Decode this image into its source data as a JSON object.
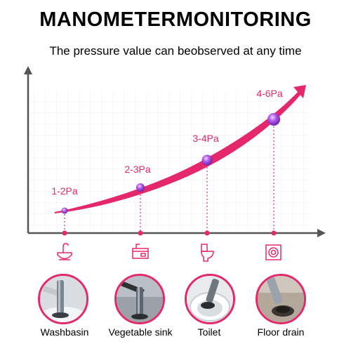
{
  "header": {
    "title": "MANOMETERMONITORING",
    "subtitle": "The pressure value can beobserved at any time"
  },
  "colors": {
    "accent": "#e5286b",
    "point": "#a64ce0",
    "axis": "#555555"
  },
  "points": [
    {
      "label": "1-2Pa"
    },
    {
      "label": "2-3Pa"
    },
    {
      "label": "3-4Pa"
    },
    {
      "label": "4-6Pa"
    }
  ],
  "locations": [
    {
      "icon": "washbasin-icon",
      "label": "Washbasin"
    },
    {
      "icon": "vegetable-sink-icon",
      "label": "Vegetable sink"
    },
    {
      "icon": "toilet-icon",
      "label": "Toilet"
    },
    {
      "icon": "floor-drain-icon",
      "label": "Floor drain"
    }
  ]
}
